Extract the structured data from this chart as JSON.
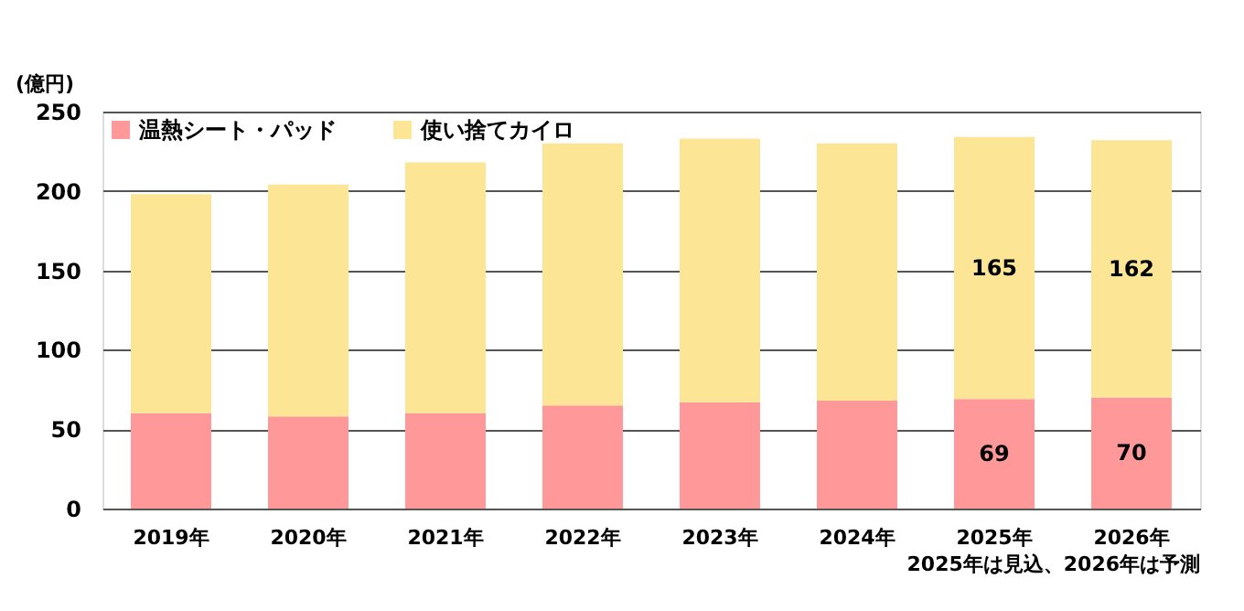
{
  "chart_data": {
    "type": "bar",
    "stacked": true,
    "ylabel": "(億円)",
    "categories": [
      "2019年",
      "2020年",
      "2021年",
      "2022年",
      "2023年",
      "2024年",
      "2025年",
      "2026年"
    ],
    "series": [
      {
        "name": "温熱シート・パッド",
        "color": "#ff9999",
        "values": [
          60,
          58,
          60,
          65,
          67,
          68,
          69,
          70
        ],
        "value_labels": [
          null,
          null,
          null,
          null,
          null,
          null,
          "69",
          "70"
        ]
      },
      {
        "name": "使い捨てカイロ",
        "color": "#fce595",
        "values": [
          138,
          146,
          158,
          165,
          166,
          162,
          165,
          162
        ],
        "value_labels": [
          null,
          null,
          null,
          null,
          null,
          null,
          "165",
          "162"
        ]
      }
    ],
    "ylim": [
      0,
      250
    ],
    "yticks": [
      0,
      50,
      100,
      150,
      200,
      250
    ],
    "grid": "y",
    "legend": "top left",
    "annotations": [
      "2025年は見込、2026年は予測"
    ]
  }
}
